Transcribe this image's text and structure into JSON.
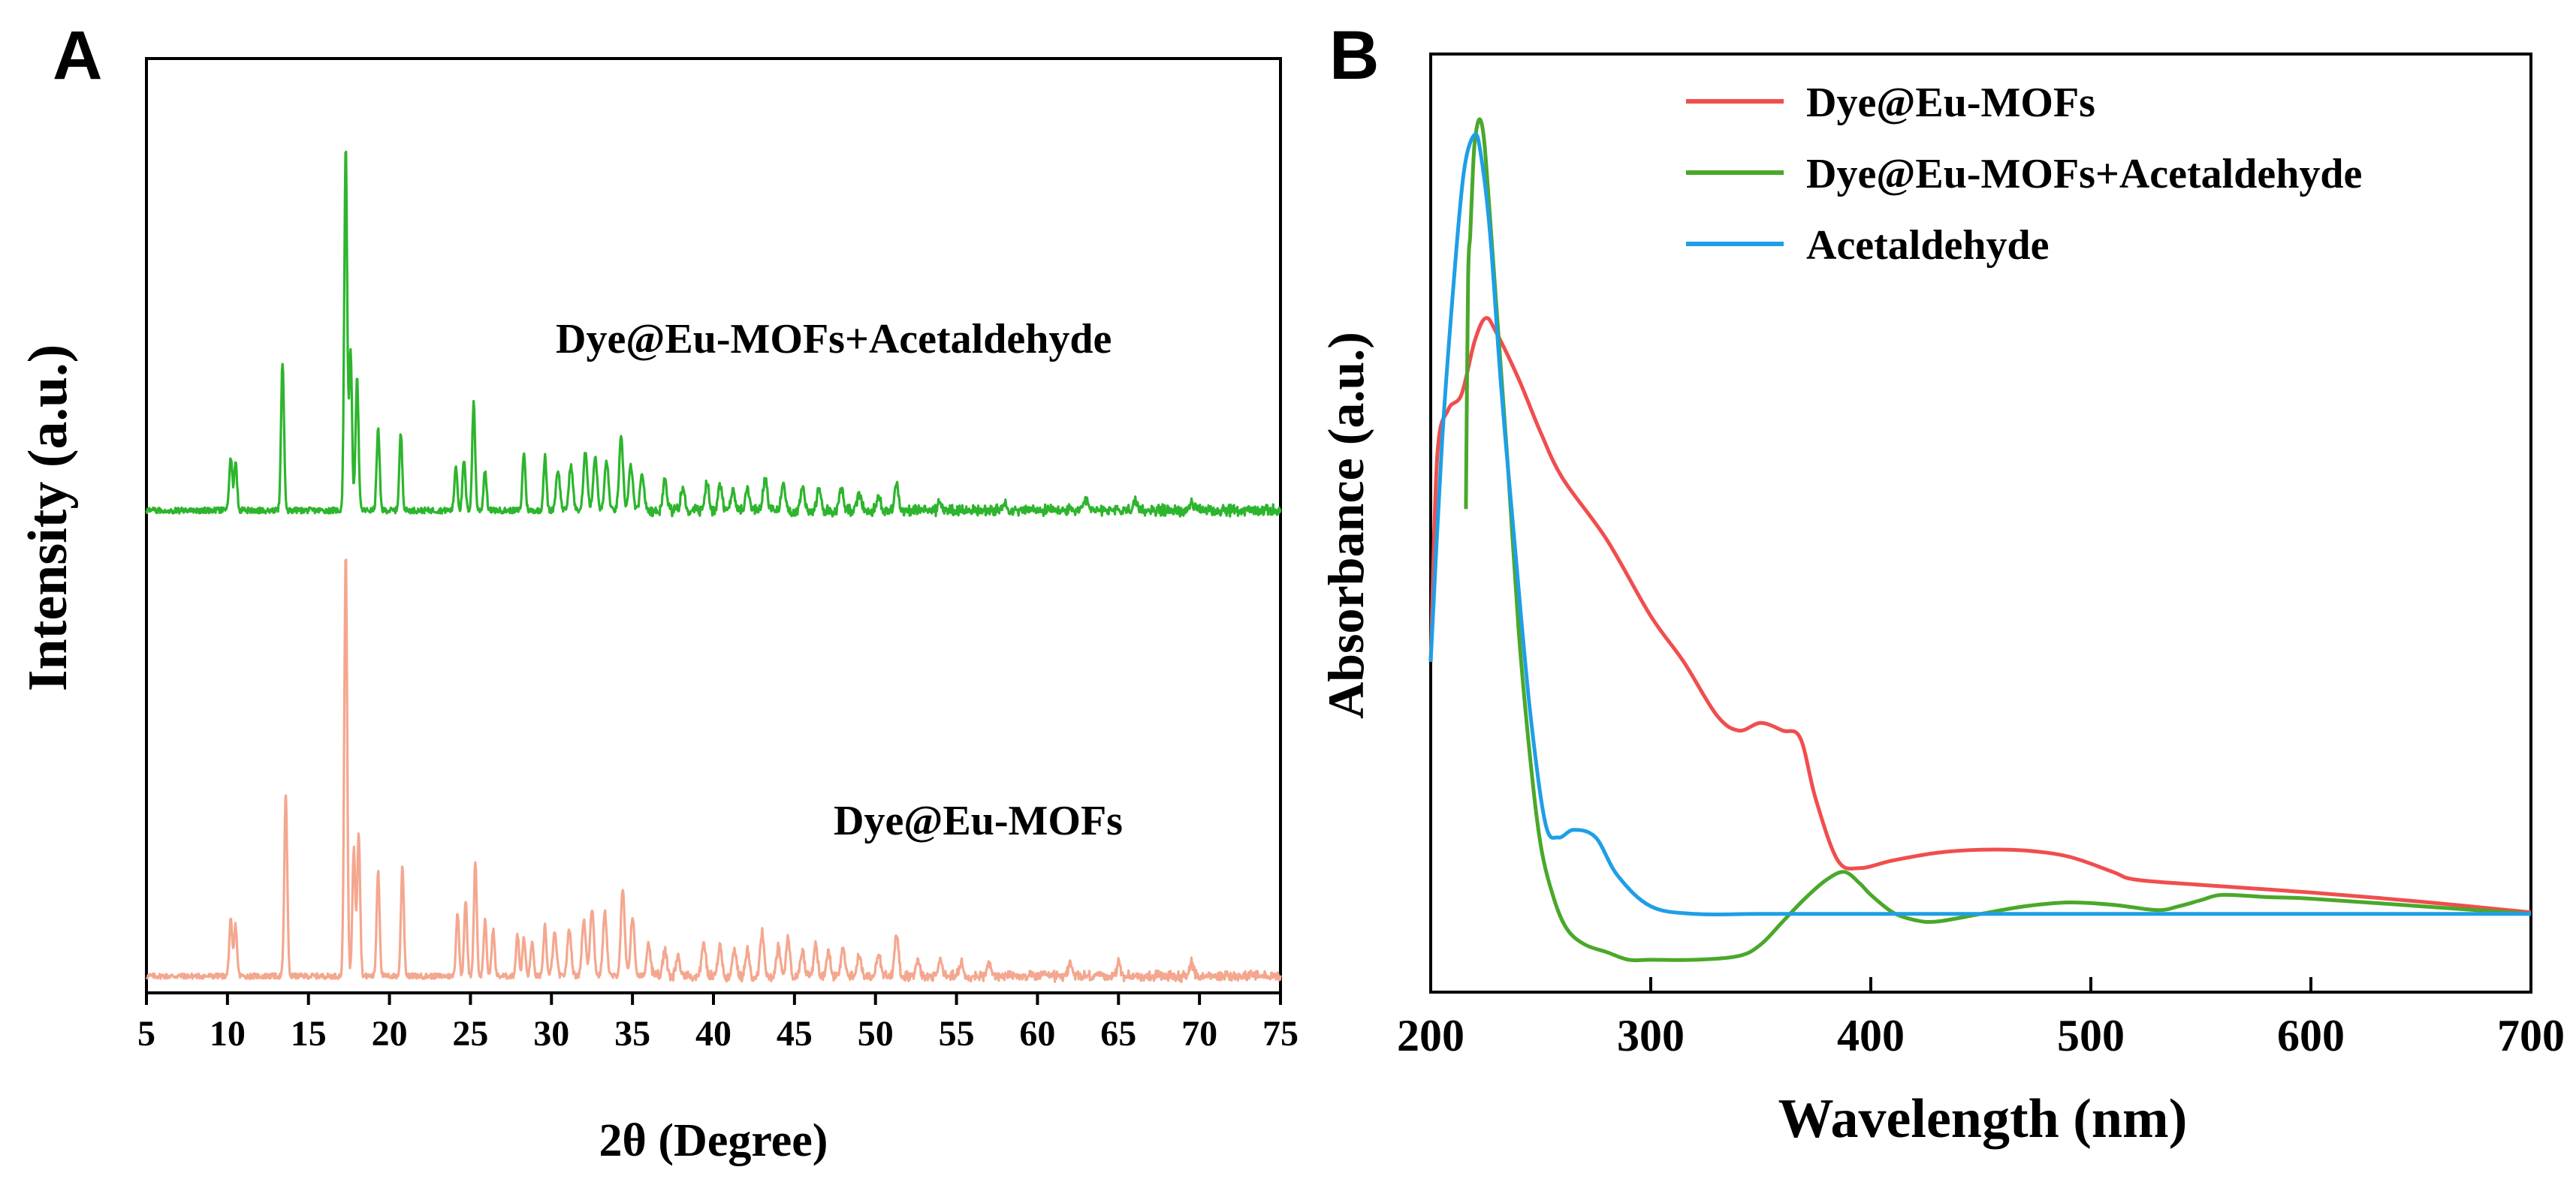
{
  "chart_data": [
    {
      "panel": "A",
      "type": "line",
      "xlabel": "2θ (Degree)",
      "ylabel": "Intensity (a.u.)",
      "xlim": [
        5,
        75
      ],
      "xticks": [
        5,
        10,
        15,
        20,
        25,
        30,
        35,
        40,
        45,
        50,
        55,
        60,
        65,
        70,
        75
      ],
      "ylim": [
        0,
        100
      ],
      "grid": false,
      "series": [
        {
          "name": "Dye@Eu-MOFs",
          "color": "#f4a78f",
          "baseline": 1,
          "peaks": [
            [
              10.2,
              13
            ],
            [
              10.5,
              12
            ],
            [
              13.6,
              43
            ],
            [
              17.3,
              100
            ],
            [
              17.8,
              30
            ],
            [
              18.1,
              34
            ],
            [
              19.3,
              25
            ],
            [
              20.8,
              26
            ],
            [
              24.2,
              15
            ],
            [
              24.7,
              18
            ],
            [
              25.3,
              27
            ],
            [
              25.9,
              13
            ],
            [
              26.4,
              11
            ],
            [
              27.9,
              10
            ],
            [
              28.3,
              9
            ],
            [
              28.8,
              8
            ],
            [
              29.6,
              12
            ],
            [
              30.2,
              10
            ],
            [
              31.1,
              11
            ],
            [
              32.0,
              13
            ],
            [
              32.5,
              16
            ],
            [
              33.3,
              15
            ],
            [
              34.4,
              20
            ],
            [
              35.0,
              14
            ],
            [
              36.0,
              8
            ],
            [
              37.0,
              6
            ],
            [
              37.8,
              5
            ],
            [
              39.4,
              8
            ],
            [
              40.4,
              7
            ],
            [
              41.3,
              6
            ],
            [
              42.1,
              6
            ],
            [
              43.0,
              10
            ],
            [
              44.0,
              7
            ],
            [
              44.6,
              9
            ],
            [
              45.5,
              6
            ],
            [
              46.3,
              7
            ],
            [
              47.1,
              6
            ],
            [
              48.0,
              7
            ],
            [
              49.0,
              5
            ],
            [
              50.2,
              5
            ],
            [
              51.3,
              10
            ],
            [
              52.6,
              4
            ],
            [
              54.0,
              4
            ],
            [
              55.3,
              3
            ],
            [
              57.0,
              3
            ],
            [
              62.0,
              3
            ],
            [
              65.0,
              3
            ],
            [
              69.5,
              3
            ]
          ]
        },
        {
          "name": "Dye@Eu-MOFs+Acetaldehyde",
          "color": "#2db52d",
          "baseline": 1,
          "peaks": [
            [
              10.2,
              12
            ],
            [
              10.5,
              11
            ],
            [
              13.4,
              33
            ],
            [
              17.3,
              81
            ],
            [
              17.6,
              35
            ],
            [
              18.0,
              30
            ],
            [
              19.3,
              18
            ],
            [
              20.7,
              17
            ],
            [
              24.1,
              10
            ],
            [
              24.6,
              11
            ],
            [
              25.2,
              24
            ],
            [
              25.9,
              9
            ],
            [
              28.3,
              13
            ],
            [
              29.6,
              12
            ],
            [
              30.4,
              9
            ],
            [
              31.2,
              10
            ],
            [
              32.1,
              13
            ],
            [
              32.7,
              12
            ],
            [
              33.4,
              11
            ],
            [
              34.3,
              16
            ],
            [
              34.9,
              10
            ],
            [
              35.6,
              8
            ],
            [
              37.0,
              7
            ],
            [
              38.1,
              5
            ],
            [
              39.6,
              6
            ],
            [
              40.4,
              6
            ],
            [
              41.2,
              5
            ],
            [
              42.1,
              5
            ],
            [
              43.2,
              8
            ],
            [
              44.3,
              6
            ],
            [
              45.5,
              5
            ],
            [
              46.5,
              5
            ],
            [
              47.9,
              5
            ],
            [
              49.0,
              4
            ],
            [
              50.2,
              3
            ],
            [
              51.3,
              6
            ],
            [
              54.0,
              2
            ],
            [
              58.0,
              2
            ],
            [
              63.0,
              2
            ],
            [
              66.0,
              2
            ],
            [
              69.5,
              2
            ]
          ]
        }
      ],
      "annotations": [
        "Dye@Eu-MOFs+Acetaldehyde",
        "Dye@Eu-MOFs"
      ]
    },
    {
      "panel": "B",
      "type": "line",
      "xlabel": "Wavelength (nm)",
      "ylabel": "Absorbance (a.u.)",
      "xlim": [
        200,
        700
      ],
      "xticks": [
        200,
        300,
        400,
        500,
        600,
        700
      ],
      "ylim": [
        0,
        1
      ],
      "grid": false,
      "legend_position": "top-right",
      "series": [
        {
          "name": "Dye@Eu-MOFs",
          "color": "#f04e4e",
          "x": [
            200,
            203,
            208,
            214,
            220,
            225,
            230,
            240,
            250,
            260,
            280,
            300,
            315,
            330,
            340,
            350,
            360,
            368,
            375,
            385,
            395,
            410,
            430,
            450,
            470,
            490,
            510,
            520,
            550,
            600,
            650,
            700
          ],
          "y": [
            0.34,
            0.61,
            0.67,
            0.69,
            0.76,
            0.79,
            0.77,
            0.71,
            0.64,
            0.58,
            0.5,
            0.4,
            0.34,
            0.27,
            0.25,
            0.26,
            0.25,
            0.24,
            0.16,
            0.08,
            0.07,
            0.08,
            0.09,
            0.094,
            0.093,
            0.085,
            0.065,
            0.055,
            0.048,
            0.038,
            0.026,
            0.012
          ]
        },
        {
          "name": "Dye@Eu-MOFs+Acetaldehyde",
          "color": "#4aa82a",
          "x": [
            216,
            217,
            218,
            219,
            220,
            222,
            224,
            226,
            230,
            235,
            240,
            245,
            250,
            256,
            262,
            270,
            280,
            290,
            300,
            320,
            340,
            350,
            360,
            370,
            380,
            388,
            395,
            400,
            410,
            420,
            430,
            450,
            470,
            490,
            510,
            530,
            540,
            550,
            560,
            580,
            600,
            650,
            700
          ],
          "y": [
            0.54,
            0.84,
            0.9,
            0.97,
            1.02,
            1.05,
            1.03,
            0.96,
            0.8,
            0.6,
            0.38,
            0.22,
            0.1,
            0.03,
            -0.01,
            -0.03,
            -0.04,
            -0.05,
            -0.05,
            -0.05,
            -0.045,
            -0.03,
            0.0,
            0.03,
            0.055,
            0.065,
            0.05,
            0.035,
            0.012,
            0.002,
            0.0,
            0.01,
            0.02,
            0.025,
            0.022,
            0.015,
            0.02,
            0.028,
            0.035,
            0.032,
            0.03,
            0.02,
            0.01
          ]
        },
        {
          "name": "Acetaldehyde",
          "color": "#1e9fe6",
          "x": [
            200,
            205,
            210,
            215,
            220,
            223,
            227,
            232,
            238,
            245,
            252,
            258,
            265,
            275,
            285,
            300,
            320,
            350,
            400,
            500,
            600,
            700
          ],
          "y": [
            0.34,
            0.62,
            0.82,
            0.98,
            1.03,
            1.0,
            0.9,
            0.7,
            0.5,
            0.28,
            0.13,
            0.11,
            0.12,
            0.11,
            0.06,
            0.02,
            0.01,
            0.01,
            0.01,
            0.01,
            0.01,
            0.01
          ]
        }
      ]
    }
  ]
}
